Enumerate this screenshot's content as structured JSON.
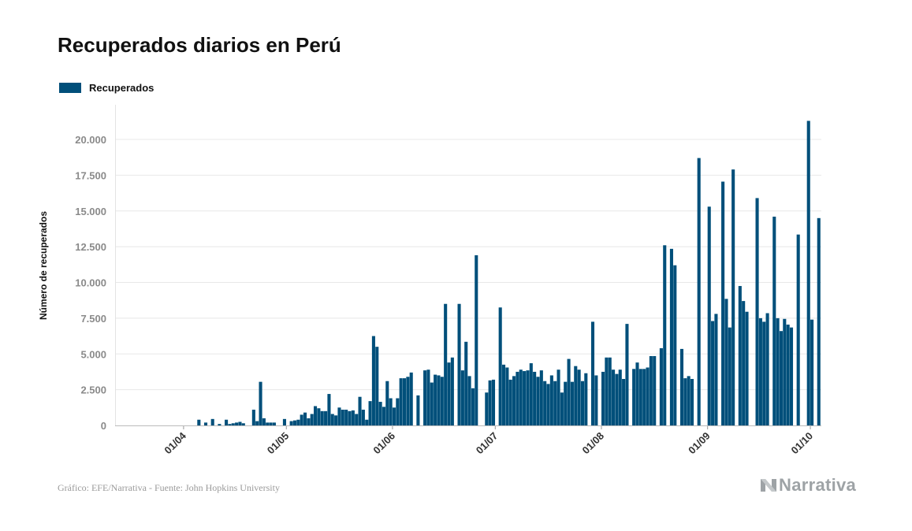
{
  "chart_data": {
    "type": "bar",
    "title": "Recuperados diarios en Perú",
    "ylabel": "Número de recuperados",
    "xlabel": "",
    "ylim": [
      0,
      22500
    ],
    "y_ticks": [
      0,
      2500,
      5000,
      7500,
      10000,
      12500,
      15000,
      17500,
      20000
    ],
    "y_tick_labels": [
      "0",
      "2.500",
      "5.000",
      "7.500",
      "10.000",
      "12.500",
      "15.000",
      "17.500",
      "20.000"
    ],
    "x_tick_labels": [
      "01/04",
      "01/05",
      "01/06",
      "01/07",
      "01/08",
      "01/09",
      "01/10"
    ],
    "x_tick_days": [
      20,
      50,
      81,
      111,
      142,
      173,
      203
    ],
    "grid": true,
    "legend_position": "top-left",
    "series": [
      {
        "name": "Recuperados",
        "color": "#004f7a",
        "start_day": 0,
        "values": [
          0,
          0,
          0,
          0,
          0,
          0,
          0,
          0,
          0,
          0,
          0,
          0,
          0,
          0,
          0,
          0,
          0,
          0,
          0,
          0,
          0,
          0,
          0,
          0,
          400,
          0,
          200,
          0,
          450,
          0,
          100,
          0,
          400,
          100,
          150,
          200,
          250,
          150,
          0,
          0,
          1100,
          300,
          3050,
          500,
          200,
          200,
          200,
          0,
          0,
          450,
          0,
          300,
          350,
          400,
          750,
          900,
          500,
          800,
          1350,
          1200,
          1000,
          1000,
          2200,
          800,
          700,
          1250,
          1100,
          1100,
          1000,
          1050,
          800,
          2000,
          1100,
          400,
          1700,
          6250,
          5500,
          1650,
          1300,
          3100,
          1900,
          1250,
          1900,
          3300,
          3300,
          3400,
          3700,
          0,
          2100,
          0,
          3850,
          3900,
          3000,
          3550,
          3500,
          3400,
          8500,
          4400,
          4750,
          0,
          8500,
          3850,
          5850,
          3450,
          2600,
          11900,
          0,
          0,
          2300,
          3150,
          3200,
          0,
          8250,
          4250,
          4050,
          3200,
          3450,
          3750,
          3900,
          3800,
          3850,
          4350,
          3750,
          3400,
          3850,
          3100,
          2900,
          3500,
          3100,
          3900,
          2300,
          3050,
          4650,
          3050,
          4150,
          3900,
          3100,
          3650,
          0,
          7250,
          3500,
          0,
          3750,
          4750,
          4750,
          3900,
          3600,
          3900,
          3250,
          7100,
          0,
          3950,
          4400,
          3950,
          3950,
          4050,
          4850,
          4850,
          0,
          5400,
          12600,
          0,
          12350,
          11200,
          0,
          5350,
          3300,
          3450,
          3250,
          0,
          18700,
          0,
          0,
          15300,
          7300,
          7800,
          0,
          17050,
          8850,
          6850,
          17900,
          0,
          9750,
          8700,
          7950,
          0,
          0,
          15900,
          7500,
          7250,
          7850,
          0,
          14600,
          7500,
          6600,
          7450,
          7050,
          6850,
          0,
          13350,
          0,
          0,
          21300,
          7400,
          0,
          14500,
          0,
          0,
          0,
          0,
          0,
          0,
          0,
          0,
          0,
          0
        ]
      }
    ]
  },
  "legend": {
    "label": "Recuperados"
  },
  "source": "Gráfico: EFE/Narrativa - Fuente: John Hopkins University",
  "brand": {
    "name": "Narrativa",
    "color": "#9ea3a6"
  }
}
